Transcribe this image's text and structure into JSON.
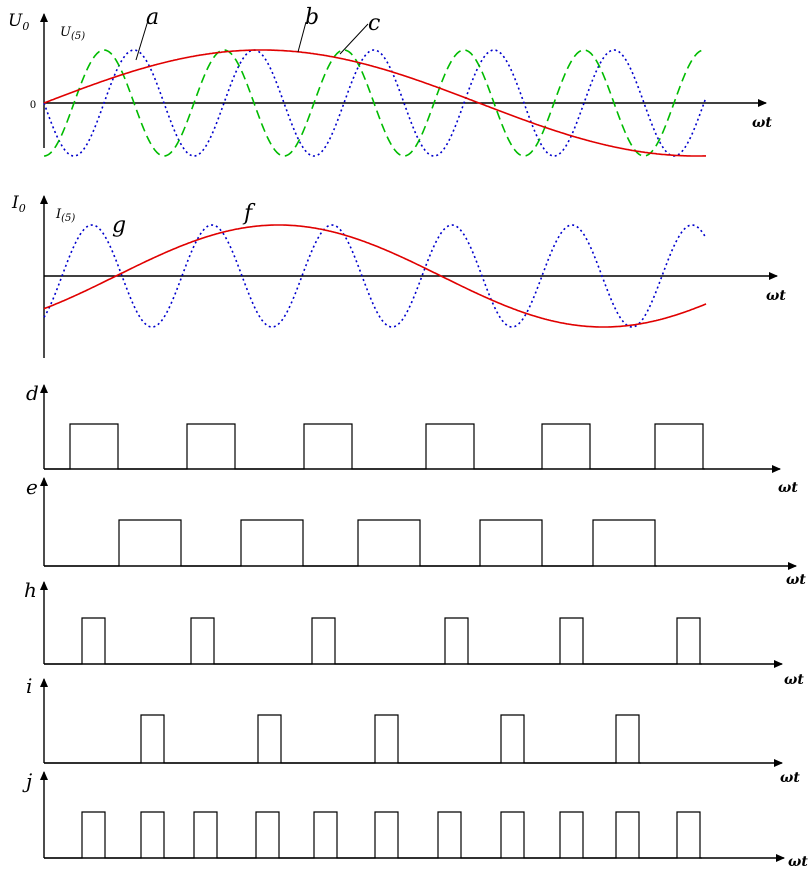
{
  "panel1": {
    "y_axis_label": "U",
    "y_axis_sub": "0",
    "harmonic_label": "U",
    "harmonic_sub": "(5)",
    "origin_label": "0",
    "x_axis_label": "ωt",
    "curve_labels": [
      "a",
      "b",
      "c"
    ],
    "colors": {
      "a": "#e00000",
      "b": "#0000cc",
      "c": "#00bb00"
    }
  },
  "panel2": {
    "y_axis_label": "I",
    "y_axis_sub": "0",
    "harmonic_label": "I",
    "harmonic_sub": "(5)",
    "x_axis_label": "ωt",
    "curve_labels": [
      "g",
      "f"
    ],
    "colors": {
      "f": "#e00000",
      "g": "#0000cc"
    }
  },
  "pulse_panels": [
    {
      "label": "d",
      "x_axis_label": "ωt"
    },
    {
      "label": "e",
      "x_axis_label": "ωt"
    },
    {
      "label": "h",
      "x_axis_label": "ωt"
    },
    {
      "label": "i",
      "x_axis_label": "ωt"
    },
    {
      "label": "j",
      "x_axis_label": "ωt"
    }
  ]
}
